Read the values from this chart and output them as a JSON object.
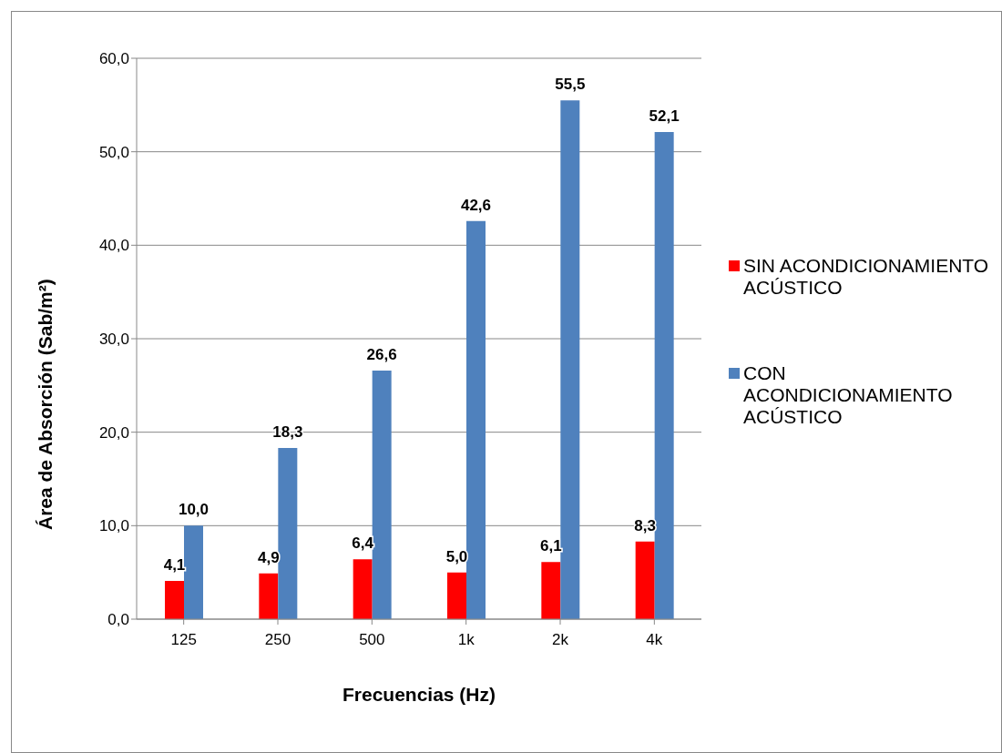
{
  "chart_data": {
    "type": "bar",
    "xlabel": "Frecuencias (Hz)",
    "ylabel": "Área de Absorción (Sab/m²)",
    "categories": [
      "125",
      "250",
      "500",
      "1k",
      "2k",
      "4k"
    ],
    "series": [
      {
        "name": "SIN ACONDICIONAMIENTO ACÚSTICO",
        "color": "#ff0000",
        "values": [
          4.1,
          4.9,
          6.4,
          5.0,
          6.1,
          8.3
        ],
        "value_labels": [
          "4,1",
          "4,9",
          "6,4",
          "5,0",
          "6,1",
          "8,3"
        ]
      },
      {
        "name": "CON ACONDICIONAMIENTO ACÚSTICO",
        "color": "#4f81bd",
        "values": [
          10.0,
          18.3,
          26.6,
          42.6,
          55.5,
          52.1
        ],
        "value_labels": [
          "10,0",
          "18,3",
          "26,6",
          "42,6",
          "55,5",
          "52,1"
        ]
      }
    ],
    "ylim": [
      0,
      60
    ],
    "yticks": [
      {
        "value": 0,
        "label": "0,0"
      },
      {
        "value": 10,
        "label": "10,0"
      },
      {
        "value": 20,
        "label": "20,0"
      },
      {
        "value": 30,
        "label": "30,0"
      },
      {
        "value": 40,
        "label": "40,0"
      },
      {
        "value": 50,
        "label": "50,0"
      },
      {
        "value": 60,
        "label": "60,0"
      }
    ],
    "grid": "y",
    "legend": "right"
  }
}
